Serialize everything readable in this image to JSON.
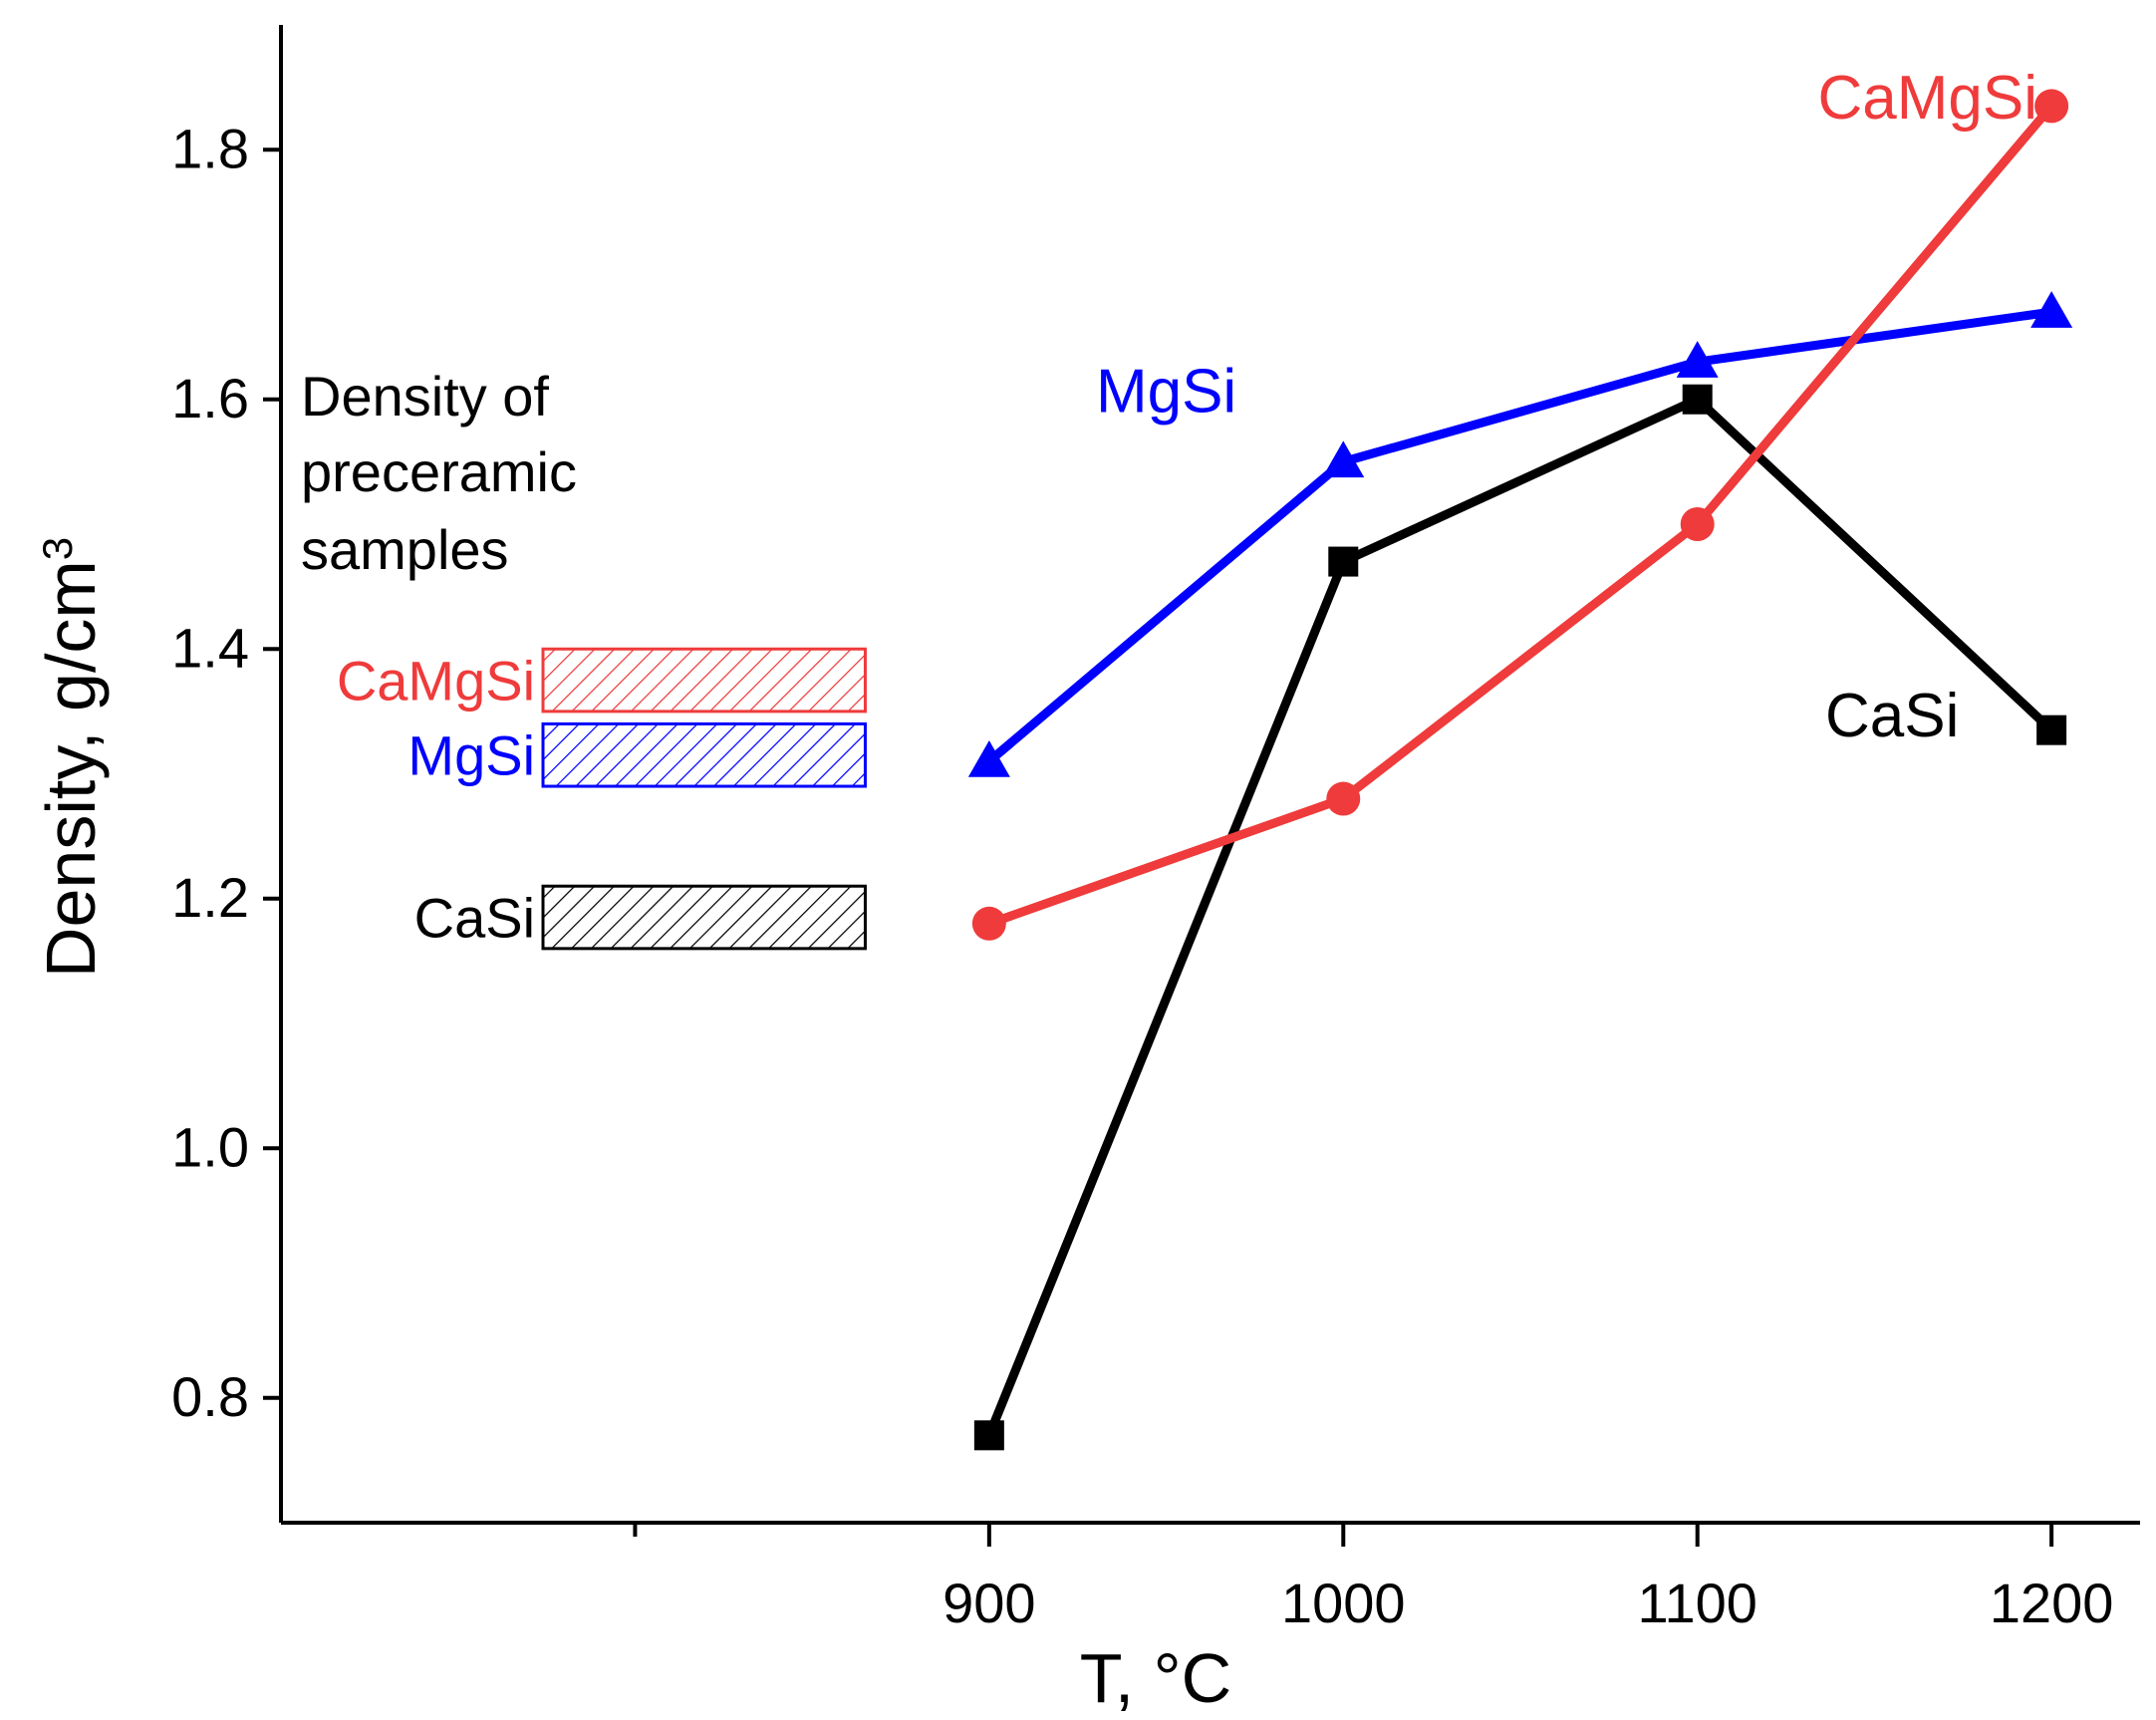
{
  "chart_data": {
    "type": "line",
    "title": "",
    "xlabel": "T, °C",
    "ylabel_main": "Density, g/cm",
    "ylabel_sup": "3",
    "xlim": [
      700,
      1225
    ],
    "ylim": [
      0.7,
      1.9
    ],
    "x_ticks": [
      {
        "value": 800,
        "label": ""
      },
      {
        "value": 900,
        "label": "900"
      },
      {
        "value": 1000,
        "label": "1000"
      },
      {
        "value": 1100,
        "label": "1100"
      },
      {
        "value": 1200,
        "label": "1200"
      }
    ],
    "y_ticks": [
      {
        "value": 0.8,
        "label": "0.8"
      },
      {
        "value": 1.0,
        "label": "1.0"
      },
      {
        "value": 1.2,
        "label": "1.2"
      },
      {
        "value": 1.4,
        "label": "1.4"
      },
      {
        "value": 1.6,
        "label": "1.6"
      },
      {
        "value": 1.8,
        "label": "1.8"
      }
    ],
    "x": [
      900,
      1000,
      1100,
      1200
    ],
    "series": [
      {
        "name": "CaSi",
        "marker": "square",
        "color": "#000000",
        "values": [
          0.77,
          1.47,
          1.6,
          1.335
        ],
        "label_x": 1155,
        "label_y": 1.33
      },
      {
        "name": "MgSi",
        "marker": "triangle",
        "color": "#0000ff",
        "values": [
          1.31,
          1.55,
          1.63,
          1.67
        ],
        "label_x": 950,
        "label_y": 1.59
      },
      {
        "name": "CaMgSi",
        "marker": "circle",
        "color": "#ef3b3b",
        "values": [
          1.18,
          1.28,
          1.5,
          1.835
        ],
        "label_x": 1165,
        "label_y": 1.825
      }
    ],
    "annotation": {
      "lines": [
        "Density of",
        "preceramic",
        "samples"
      ]
    },
    "preceramic_bands": [
      {
        "name": "CaMgSi",
        "color": "#ef3b3b",
        "x_range": [
          774,
          865
        ],
        "y_range": [
          1.35,
          1.4
        ]
      },
      {
        "name": "MgSi",
        "color": "#0000ff",
        "x_range": [
          774,
          865
        ],
        "y_range": [
          1.29,
          1.34
        ]
      },
      {
        "name": "CaSi",
        "color": "#000000",
        "x_range": [
          774,
          865
        ],
        "y_range": [
          1.16,
          1.21
        ]
      }
    ]
  }
}
